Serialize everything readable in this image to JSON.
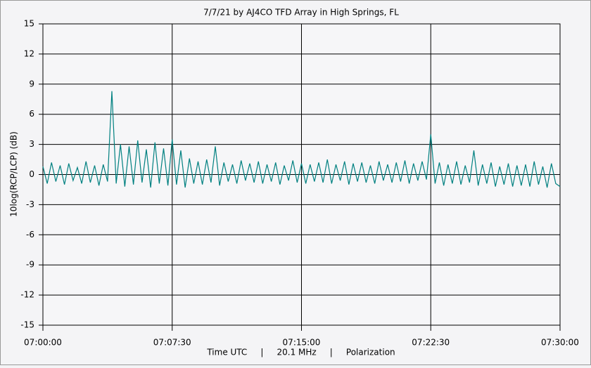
{
  "chart_data": {
    "type": "line",
    "title": "7/7/21  by  AJ4CO TFD Array  in  High Springs, FL",
    "xlabel": "Time UTC     |     20.1 MHz     |     Polarization",
    "ylabel": "10log(RCP/LCP) (dB)",
    "xlim": [
      0,
      30
    ],
    "xticks": [
      {
        "value": 0,
        "label": "07:00:00"
      },
      {
        "value": 7.5,
        "label": "07:07:30"
      },
      {
        "value": 15,
        "label": "07:15:00"
      },
      {
        "value": 22.5,
        "label": "07:22:30"
      },
      {
        "value": 30,
        "label": "07:30:00"
      }
    ],
    "ylim": [
      -15,
      15
    ],
    "yticks": [
      -15,
      -12,
      -9,
      -6,
      -3,
      0,
      3,
      6,
      9,
      12,
      15
    ],
    "grid": true,
    "x": [
      0,
      0.25,
      0.5,
      0.75,
      1,
      1.25,
      1.5,
      1.75,
      2,
      2.25,
      2.5,
      2.75,
      3,
      3.25,
      3.5,
      3.75,
      4,
      4.25,
      4.5,
      4.75,
      5,
      5.25,
      5.5,
      5.75,
      6,
      6.25,
      6.5,
      6.75,
      7,
      7.25,
      7.5,
      7.75,
      8,
      8.25,
      8.5,
      8.75,
      9,
      9.25,
      9.5,
      9.75,
      10,
      10.25,
      10.5,
      10.75,
      11,
      11.25,
      11.5,
      11.75,
      12,
      12.25,
      12.5,
      12.75,
      13,
      13.25,
      13.5,
      13.75,
      14,
      14.25,
      14.5,
      14.75,
      15,
      15.25,
      15.5,
      15.75,
      16,
      16.25,
      16.5,
      16.75,
      17,
      17.25,
      17.5,
      17.75,
      18,
      18.25,
      18.5,
      18.75,
      19,
      19.25,
      19.5,
      19.75,
      20,
      20.25,
      20.5,
      20.75,
      21,
      21.25,
      21.5,
      21.75,
      22,
      22.25,
      22.5,
      22.75,
      23,
      23.25,
      23.5,
      23.75,
      24,
      24.25,
      24.5,
      24.75,
      25,
      25.25,
      25.5,
      25.75,
      26,
      26.25,
      26.5,
      26.75,
      27,
      27.25,
      27.5,
      27.75,
      28,
      28.25,
      28.5,
      28.75,
      29,
      29.25,
      29.5,
      29.75,
      30
    ],
    "series": [
      {
        "color": "#008080",
        "values": [
          0.8,
          -0.9,
          1.2,
          -0.7,
          0.9,
          -1.0,
          1.1,
          -0.6,
          0.7,
          -0.9,
          1.3,
          -0.8,
          0.9,
          -1.1,
          1.0,
          -0.7,
          8.3,
          -0.9,
          3.0,
          -1.2,
          2.8,
          -1.0,
          3.4,
          -0.8,
          2.5,
          -1.3,
          3.2,
          -0.9,
          2.6,
          -1.1,
          3.5,
          -1.0,
          2.4,
          -1.3,
          1.6,
          -0.9,
          1.3,
          -1.0,
          1.5,
          -0.8,
          2.8,
          -1.1,
          1.2,
          -0.7,
          1.0,
          -0.9,
          1.4,
          -0.6,
          1.1,
          -0.8,
          1.3,
          -0.9,
          1.0,
          -0.7,
          1.2,
          -1.0,
          0.9,
          -0.6,
          1.4,
          -0.8,
          1.1,
          -0.9,
          1.0,
          -0.7,
          1.2,
          -0.8,
          1.5,
          -0.9,
          1.0,
          -0.6,
          1.3,
          -1.0,
          1.1,
          -0.7,
          1.2,
          -0.8,
          0.9,
          -0.9,
          1.3,
          -0.6,
          1.0,
          -0.8,
          1.2,
          -0.7,
          1.4,
          -0.9,
          1.1,
          -0.6,
          1.3,
          -0.5,
          4.0,
          -0.9,
          1.2,
          -1.1,
          1.0,
          -0.9,
          1.3,
          -1.0,
          0.9,
          -0.8,
          2.4,
          -1.1,
          1.0,
          -0.9,
          1.2,
          -1.2,
          0.8,
          -1.0,
          1.1,
          -1.2,
          0.9,
          -1.1,
          1.0,
          -1.2,
          1.3,
          -1.0,
          0.8,
          -1.3,
          1.1,
          -0.9,
          -1.2
        ]
      }
    ]
  }
}
